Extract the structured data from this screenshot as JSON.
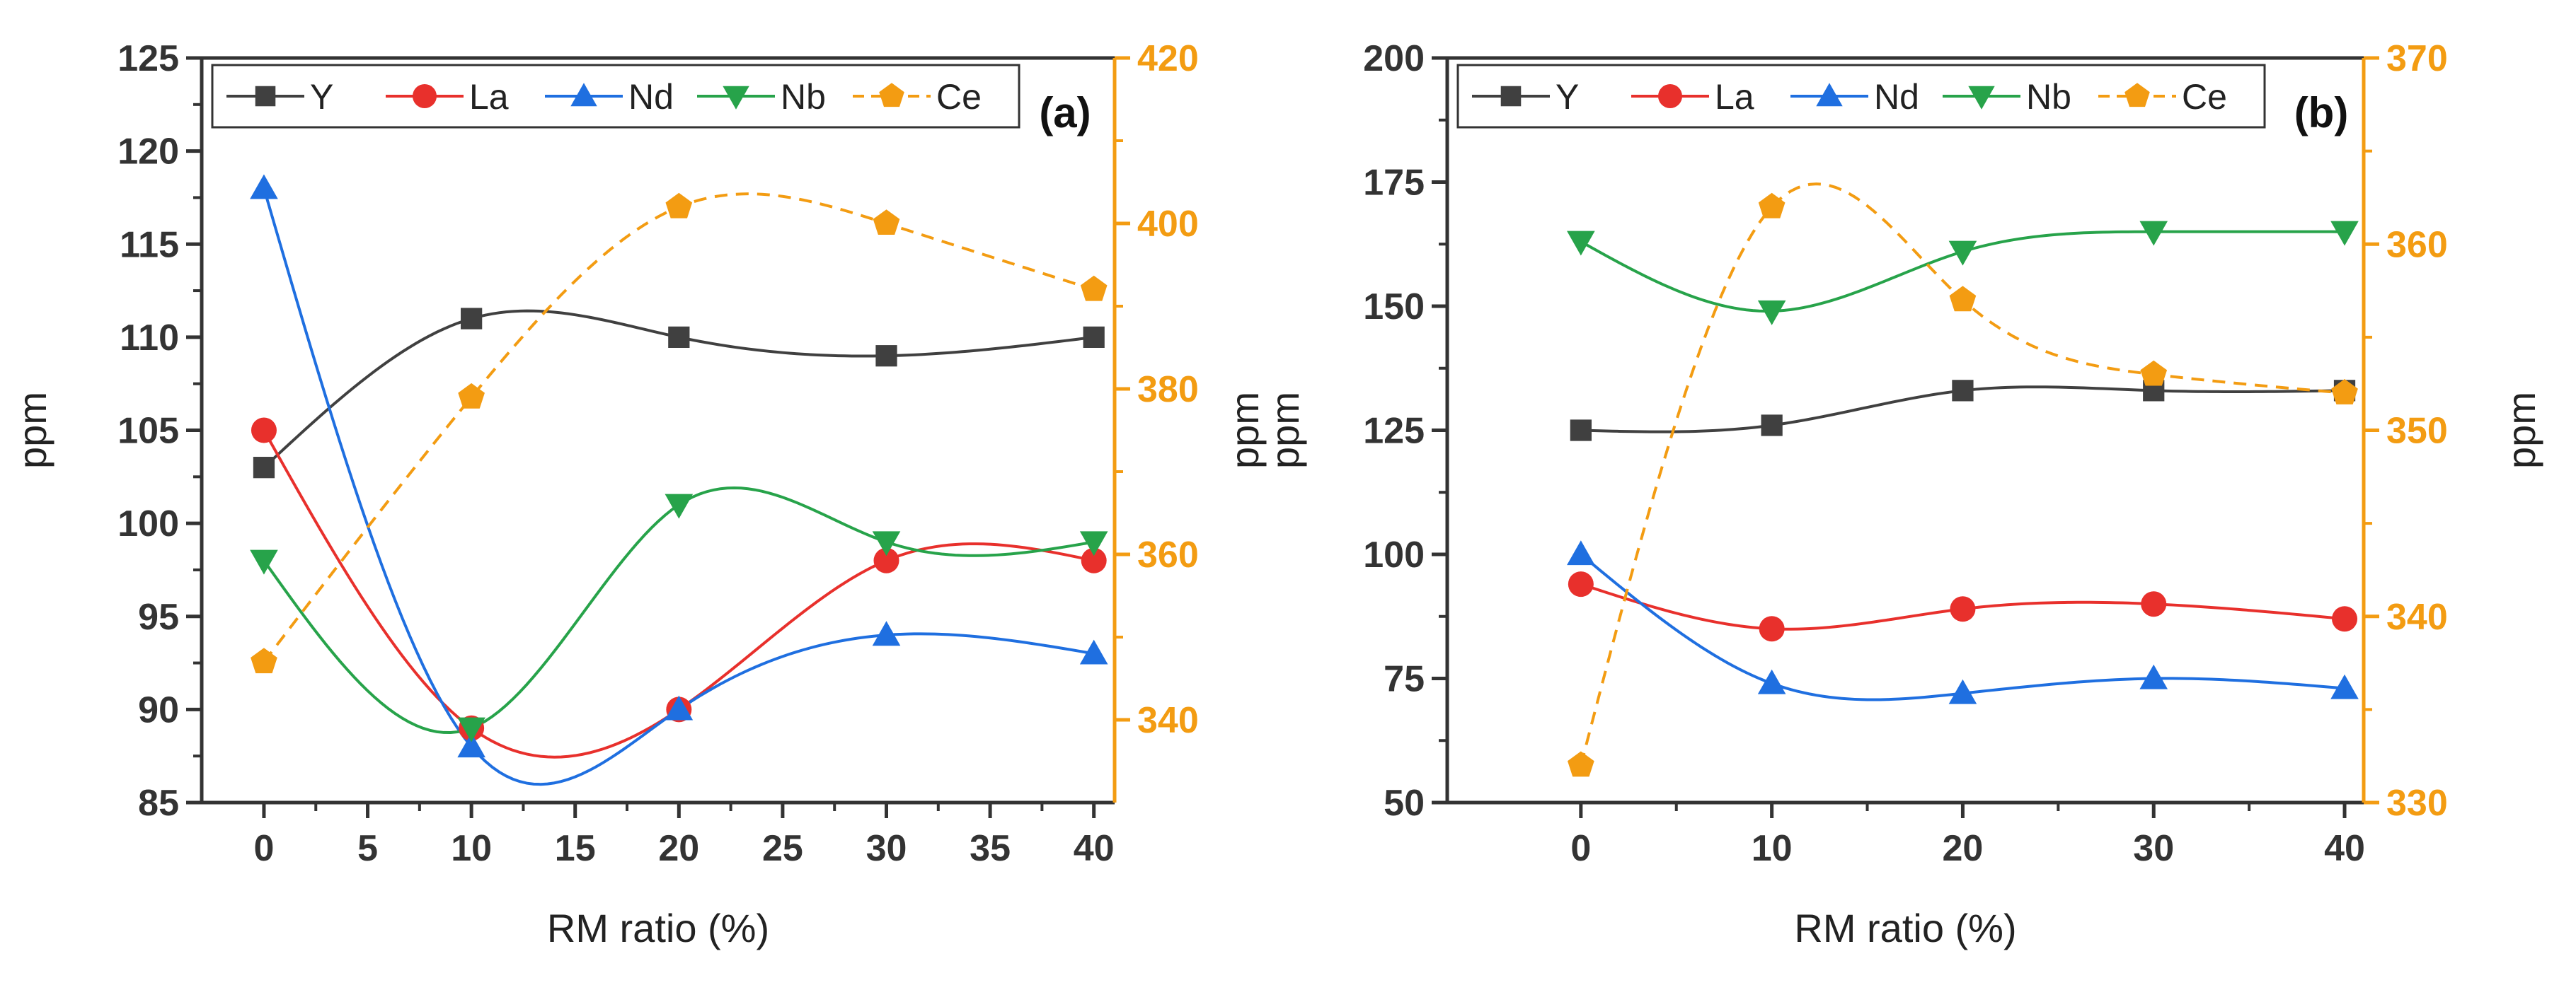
{
  "chart_data": [
    {
      "panel": "(a)",
      "type": "scatter",
      "xlabel": "RM ratio (%)",
      "ylabel_left": "ppm",
      "ylabel_right": "ppm",
      "xlim": [
        -3,
        41
      ],
      "xticks": [
        0,
        5,
        10,
        15,
        20,
        25,
        30,
        35,
        40
      ],
      "ylim_left": [
        85,
        125
      ],
      "yticks_left": [
        85,
        90,
        95,
        100,
        105,
        110,
        115,
        120,
        125
      ],
      "ylim_right": [
        330,
        420
      ],
      "yticks_right": [
        340,
        360,
        380,
        400,
        420
      ],
      "x": [
        0,
        10,
        20,
        30,
        40
      ],
      "series": [
        {
          "name": "Y",
          "axis": "left",
          "color": "#404040",
          "marker": "square",
          "line": "solid",
          "values": [
            103,
            111,
            110,
            109,
            110
          ]
        },
        {
          "name": "La",
          "axis": "left",
          "color": "#e8302c",
          "marker": "circle",
          "line": "solid",
          "values": [
            105,
            89,
            90,
            98,
            98
          ]
        },
        {
          "name": "Nd",
          "axis": "left",
          "color": "#1f6fe0",
          "marker": "triangle-up",
          "line": "solid",
          "values": [
            118,
            88,
            90,
            94,
            93
          ]
        },
        {
          "name": "Nb",
          "axis": "left",
          "color": "#27a34a",
          "marker": "triangle-down",
          "line": "solid",
          "values": [
            98,
            89,
            101,
            99,
            99
          ]
        },
        {
          "name": "Ce",
          "axis": "right",
          "color": "#f39c12",
          "marker": "pentagon",
          "line": "dashed",
          "values": [
            347,
            379,
            402,
            400,
            392
          ]
        }
      ],
      "legend_position": "top"
    },
    {
      "panel": "(b)",
      "type": "scatter",
      "xlabel": "RM ratio (%)",
      "ylabel_left": "ppm",
      "ylabel_right": "ppm",
      "xlim": [
        -7,
        41
      ],
      "xticks": [
        0,
        10,
        20,
        30,
        40
      ],
      "ylim_left": [
        50,
        200
      ],
      "yticks_left": [
        50,
        75,
        100,
        125,
        150,
        175,
        200
      ],
      "ylim_right": [
        330,
        370
      ],
      "yticks_right": [
        330,
        340,
        350,
        360,
        370
      ],
      "x": [
        0,
        10,
        20,
        30,
        40
      ],
      "series": [
        {
          "name": "Y",
          "axis": "left",
          "color": "#404040",
          "marker": "square",
          "line": "solid",
          "values": [
            125,
            126,
            133,
            133,
            133
          ]
        },
        {
          "name": "La",
          "axis": "left",
          "color": "#e8302c",
          "marker": "circle",
          "line": "solid",
          "values": [
            94,
            85,
            89,
            90,
            87
          ]
        },
        {
          "name": "Nd",
          "axis": "left",
          "color": "#1f6fe0",
          "marker": "triangle-up",
          "line": "solid",
          "values": [
            100,
            74,
            72,
            75,
            73
          ]
        },
        {
          "name": "Nb",
          "axis": "left",
          "color": "#27a34a",
          "marker": "triangle-down",
          "line": "solid",
          "values": [
            163,
            149,
            161,
            165,
            165
          ]
        },
        {
          "name": "Ce",
          "axis": "right",
          "color": "#f39c12",
          "marker": "pentagon",
          "line": "dashed",
          "values": [
            332,
            362,
            357,
            353,
            352
          ]
        }
      ],
      "legend_position": "top"
    }
  ],
  "colors": {
    "axis": "#333333",
    "right_axis": "#f39c12"
  }
}
